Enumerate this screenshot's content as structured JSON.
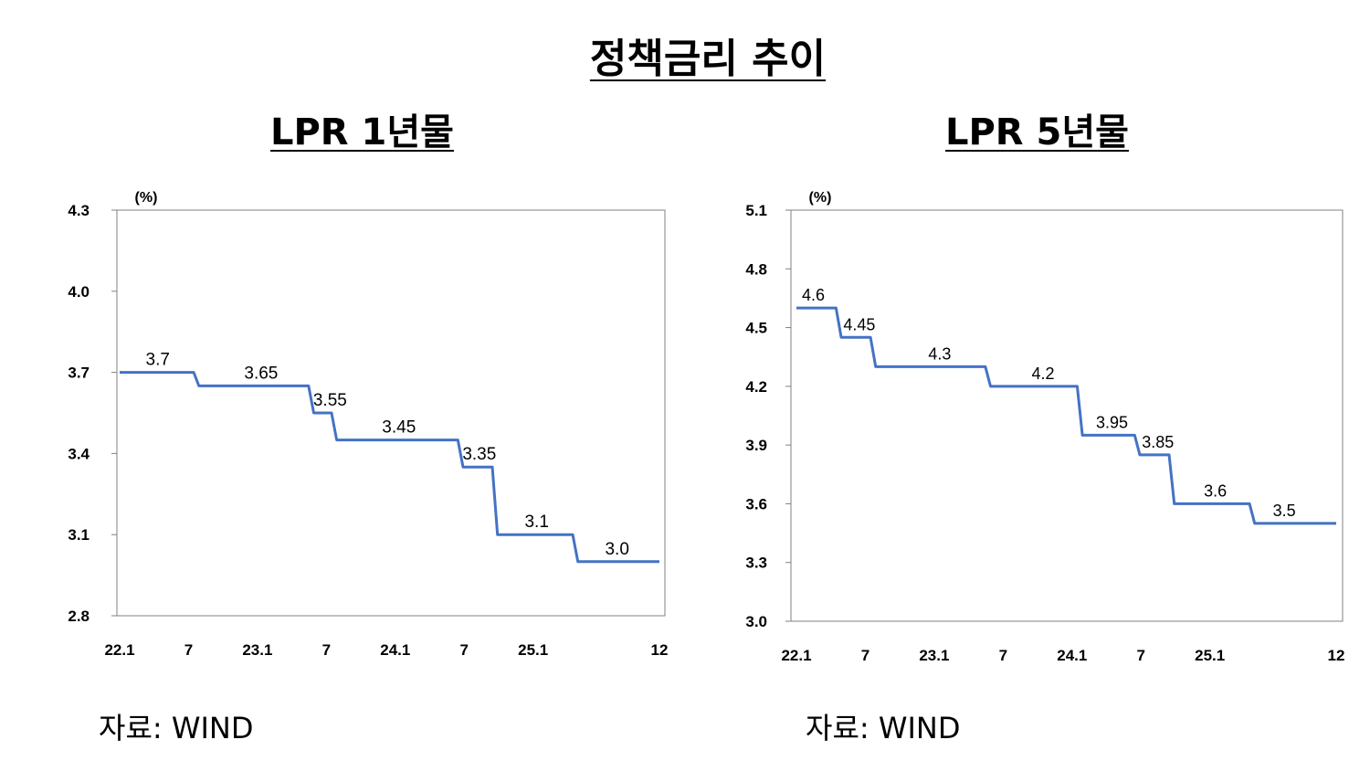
{
  "title": "정책금리 추이",
  "source": "자료:  WIND",
  "chart_data": [
    {
      "type": "line",
      "title": "LPR 1년물",
      "unit": "(%)",
      "ylim": [
        2.8,
        4.3
      ],
      "yticks": [
        "4.3",
        "4.0",
        "3.7",
        "3.4",
        "3.1",
        "2.8"
      ],
      "xticks": [
        "22.1",
        "7",
        "23.1",
        "7",
        "24.1",
        "7",
        "25.1",
        "12"
      ],
      "x": [
        "22.1",
        "22.2",
        "22.3",
        "22.4",
        "22.5",
        "22.6",
        "22.7",
        "22.8",
        "22.9",
        "22.10",
        "22.11",
        "22.12",
        "23.1",
        "23.2",
        "23.3",
        "23.4",
        "23.5",
        "23.6",
        "23.7",
        "23.8",
        "23.9",
        "23.10",
        "23.11",
        "23.12",
        "24.1",
        "24.2",
        "24.3",
        "24.4",
        "24.5",
        "24.6",
        "24.7",
        "24.8",
        "24.9",
        "24.10",
        "24.11",
        "24.12",
        "25.1",
        "25.2",
        "25.3",
        "25.4",
        "25.5",
        "25.6",
        "25.7",
        "25.8",
        "25.9",
        "25.10",
        "25.11",
        "25.12"
      ],
      "series": [
        {
          "values": [
            3.7,
            3.7,
            3.7,
            3.7,
            3.7,
            3.7,
            3.7,
            3.65,
            3.65,
            3.65,
            3.65,
            3.65,
            3.65,
            3.65,
            3.65,
            3.65,
            3.65,
            3.55,
            3.55,
            3.45,
            3.45,
            3.45,
            3.45,
            3.45,
            3.45,
            3.45,
            3.45,
            3.45,
            3.45,
            3.45,
            3.35,
            3.35,
            3.35,
            3.1,
            3.1,
            3.1,
            3.1,
            3.1,
            3.1,
            3.1,
            3.0,
            3.0,
            3.0,
            3.0,
            3.0,
            3.0,
            3.0,
            3.0
          ],
          "color": "#4472C4"
        }
      ],
      "data_labels": [
        {
          "text": "3.7",
          "x": "22.4",
          "value": 3.7
        },
        {
          "text": "3.65",
          "x": "23.1",
          "value": 3.65
        },
        {
          "text": "3.55",
          "x": "23.7",
          "value": 3.55
        },
        {
          "text": "3.45",
          "x": "24.1",
          "value": 3.45
        },
        {
          "text": "3.35",
          "x": "24.8",
          "value": 3.35
        },
        {
          "text": "3.1",
          "x": "25.1",
          "value": 3.1
        },
        {
          "text": "3.0",
          "x": "25.8",
          "value": 3.0
        }
      ],
      "grid": false
    },
    {
      "type": "line",
      "title": "LPR 5년물",
      "unit": "(%)",
      "ylim": [
        3.0,
        5.1
      ],
      "yticks": [
        "5.1",
        "4.8",
        "4.5",
        "4.2",
        "3.9",
        "3.6",
        "3.3",
        "3.0"
      ],
      "xticks": [
        "22.1",
        "7",
        "23.1",
        "7",
        "24.1",
        "7",
        "25.1",
        "12"
      ],
      "x": [
        "22.1",
        "22.2",
        "22.3",
        "22.4",
        "22.5",
        "22.6",
        "22.7",
        "22.8",
        "22.9",
        "22.10",
        "22.11",
        "22.12",
        "23.1",
        "23.2",
        "23.3",
        "23.4",
        "23.5",
        "23.6",
        "23.7",
        "23.8",
        "23.9",
        "23.10",
        "23.11",
        "23.12",
        "24.1",
        "24.2",
        "24.3",
        "24.4",
        "24.5",
        "24.6",
        "24.7",
        "24.8",
        "24.9",
        "24.10",
        "24.11",
        "24.12",
        "25.1",
        "25.2",
        "25.3",
        "25.4",
        "25.5",
        "25.6",
        "25.7",
        "25.8",
        "25.9",
        "25.10",
        "25.11",
        "25.12"
      ],
      "series": [
        {
          "values": [
            4.6,
            4.6,
            4.6,
            4.6,
            4.45,
            4.45,
            4.45,
            4.3,
            4.3,
            4.3,
            4.3,
            4.3,
            4.3,
            4.3,
            4.3,
            4.3,
            4.3,
            4.2,
            4.2,
            4.2,
            4.2,
            4.2,
            4.2,
            4.2,
            4.2,
            3.95,
            3.95,
            3.95,
            3.95,
            3.95,
            3.85,
            3.85,
            3.85,
            3.6,
            3.6,
            3.6,
            3.6,
            3.6,
            3.6,
            3.6,
            3.5,
            3.5,
            3.5,
            3.5,
            3.5,
            3.5,
            3.5,
            3.5
          ],
          "color": "#4472C4"
        }
      ],
      "data_labels": [
        {
          "text": "4.6",
          "x": "22.2",
          "value": 4.6
        },
        {
          "text": "4.45",
          "x": "22.6",
          "value": 4.45
        },
        {
          "text": "4.3",
          "x": "23.1",
          "value": 4.3
        },
        {
          "text": "4.2",
          "x": "23.10",
          "value": 4.2
        },
        {
          "text": "3.95",
          "x": "24.4",
          "value": 3.95
        },
        {
          "text": "3.85",
          "x": "24.8",
          "value": 3.85
        },
        {
          "text": "3.6",
          "x": "25.1",
          "value": 3.6
        },
        {
          "text": "3.5",
          "x": "25.7",
          "value": 3.5
        }
      ],
      "grid": false
    }
  ]
}
